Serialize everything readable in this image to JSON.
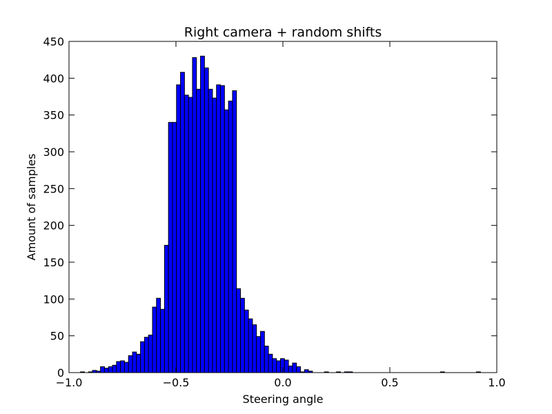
{
  "chart_data": {
    "type": "bar",
    "title": "Right camera + random shifts",
    "xlabel": "Steering angle",
    "ylabel": "Amount of samples",
    "xlim": [
      -1.0,
      1.0
    ],
    "ylim": [
      0,
      450
    ],
    "xticks": [
      "−1.0",
      "−0.5",
      "0.0",
      "0.5",
      "1.0"
    ],
    "xtick_values": [
      -1.0,
      -0.5,
      0.0,
      0.5,
      1.0
    ],
    "yticks": [
      "0",
      "50",
      "100",
      "150",
      "200",
      "250",
      "300",
      "350",
      "400",
      "450"
    ],
    "ytick_values": [
      0,
      50,
      100,
      150,
      200,
      250,
      300,
      350,
      400,
      450
    ],
    "grid": false,
    "bar_color": "#0000ff",
    "edge_color": "#000000",
    "bin_start": -0.965,
    "bin_width": 0.0187,
    "values": [
      0,
      1,
      0,
      1,
      3,
      2,
      8,
      6,
      8,
      10,
      15,
      16,
      14,
      23,
      28,
      25,
      42,
      48,
      51,
      89,
      101,
      86,
      173,
      340,
      340,
      391,
      408,
      377,
      374,
      428,
      385,
      430,
      414,
      385,
      373,
      391,
      390,
      357,
      369,
      383,
      114,
      101,
      85,
      73,
      65,
      49,
      56,
      36,
      25,
      19,
      16,
      19,
      17,
      9,
      13,
      8,
      1,
      4,
      2,
      0,
      0,
      0,
      1,
      0,
      0,
      1,
      0,
      1,
      1,
      0,
      0,
      0,
      0,
      0,
      0,
      0,
      0,
      0,
      0,
      0,
      0,
      0,
      0,
      0,
      0,
      0,
      0,
      0,
      0,
      0,
      0,
      1,
      0,
      0,
      0,
      0,
      0,
      0,
      0,
      0,
      1,
      0
    ]
  }
}
